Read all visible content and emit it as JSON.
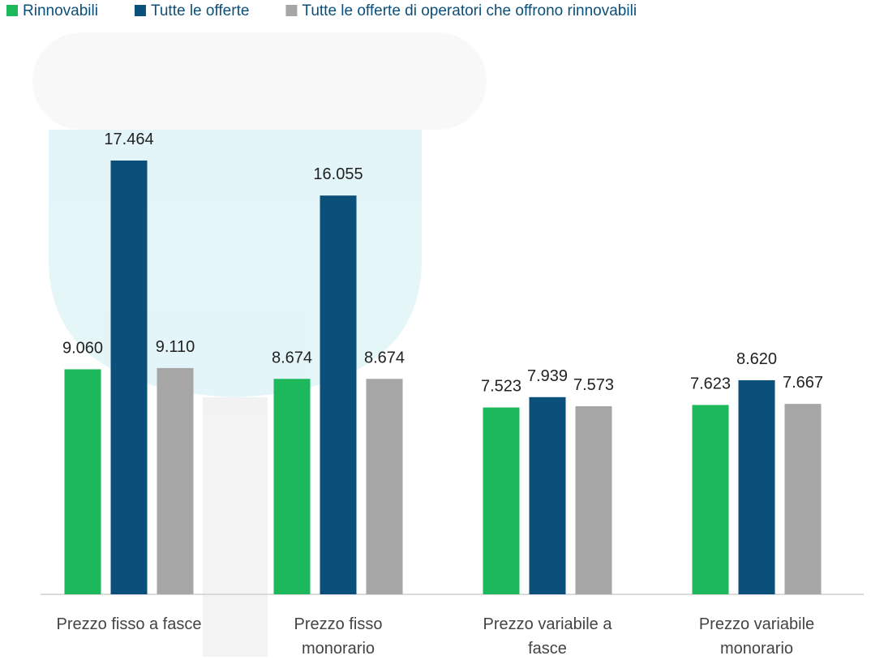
{
  "chart_data": {
    "type": "bar",
    "categories": [
      "Prezzo fisso a fasce",
      "Prezzo fisso monorario",
      "Prezzo variabile a fasce",
      "Prezzo variabile monorario"
    ],
    "series": [
      {
        "name": "Rinnovabili",
        "color": "#1db85c",
        "values": [
          9060,
          8674,
          7523,
          7623
        ],
        "value_labels": [
          "9.060",
          "8.674",
          "7.523",
          "7.623"
        ]
      },
      {
        "name": "Tutte le offerte",
        "color": "#0b4f7b",
        "values": [
          17464,
          16055,
          7939,
          8620
        ],
        "value_labels": [
          "17.464",
          "16.055",
          "7.939",
          "8.620"
        ]
      },
      {
        "name": "Tutte le offerte di operatori che offrono rinnovabili",
        "color": "#a6a6a6",
        "values": [
          9110,
          8674,
          7573,
          7667
        ],
        "value_labels": [
          "9.110",
          "8.674",
          "7.573",
          "7.667"
        ]
      }
    ],
    "legend": "top-left"
  }
}
